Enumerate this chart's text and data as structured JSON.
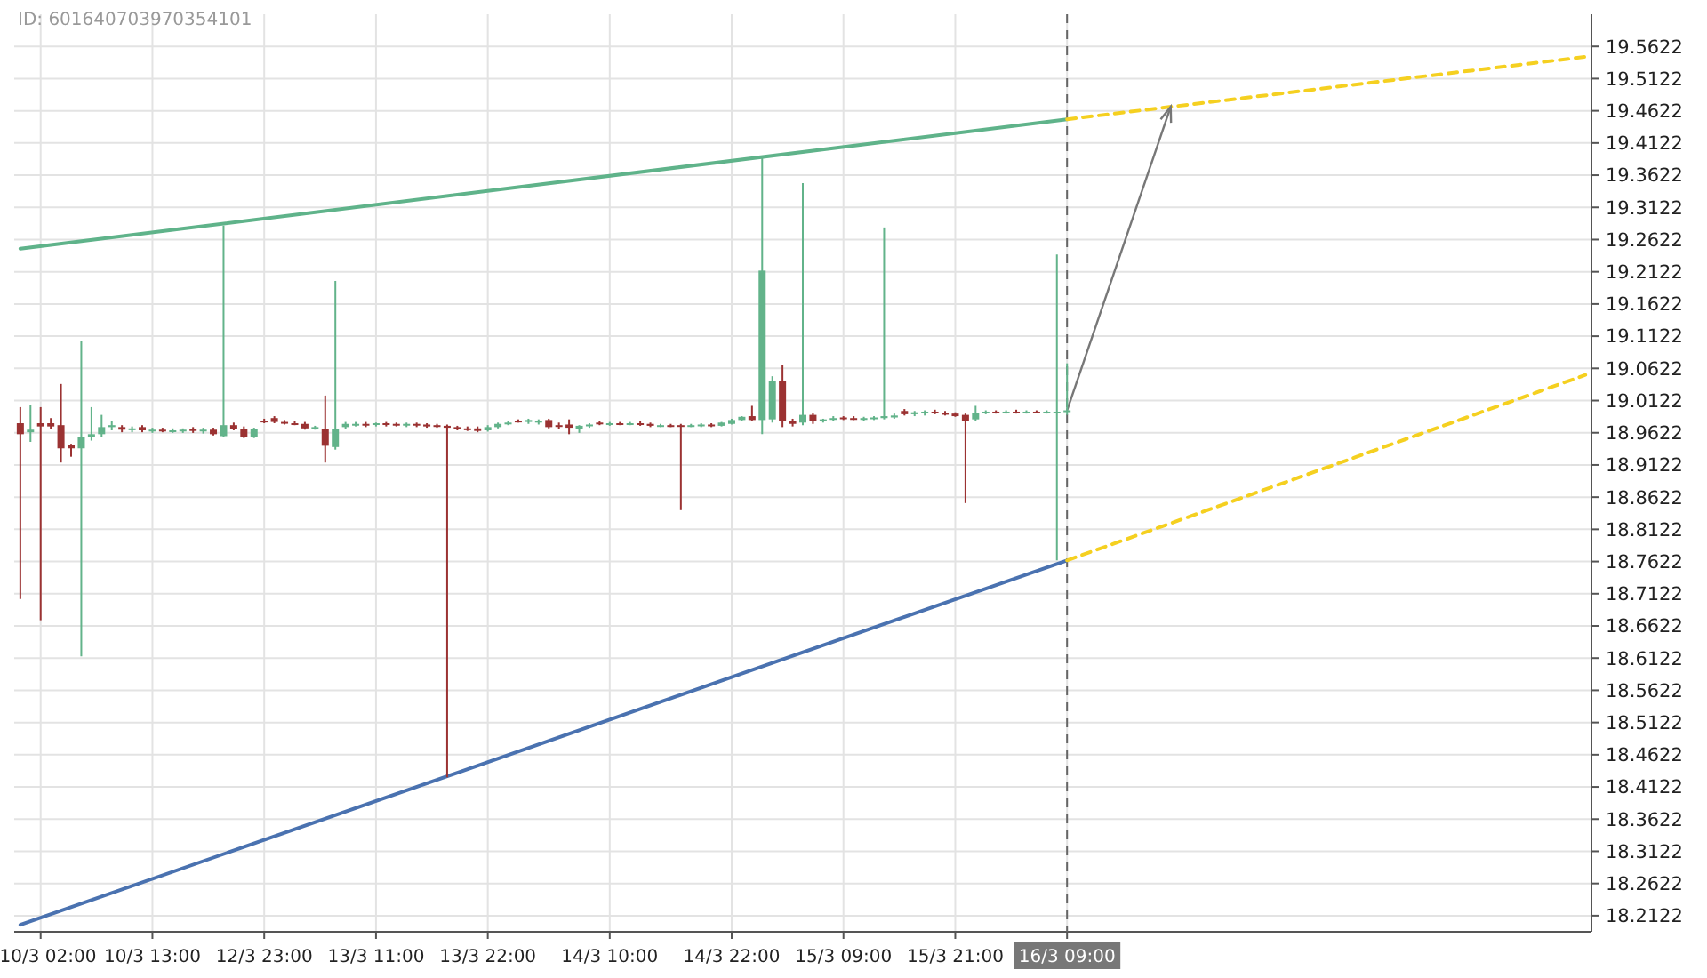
{
  "chart_data": {
    "type": "candlestick",
    "annotations": [
      "ID: 601640703970354101"
    ],
    "categories": [
      null,
      null,
      "10/3 02:00",
      null,
      null,
      null,
      null,
      null,
      null,
      null,
      null,
      null,
      null,
      "10/3 13:00",
      null,
      null,
      null,
      null,
      null,
      null,
      null,
      null,
      null,
      null,
      "12/3 23:00",
      null,
      null,
      null,
      null,
      null,
      null,
      null,
      null,
      null,
      null,
      "13/3 11:00",
      null,
      null,
      null,
      null,
      null,
      null,
      null,
      null,
      null,
      null,
      "13/3 22:00",
      null,
      null,
      null,
      null,
      null,
      null,
      null,
      null,
      null,
      null,
      null,
      "14/3 10:00",
      null,
      null,
      null,
      null,
      null,
      null,
      null,
      null,
      null,
      null,
      null,
      "14/3 22:00",
      null,
      null,
      null,
      null,
      null,
      null,
      null,
      null,
      null,
      null,
      "15/3 09:00",
      null,
      null,
      null,
      null,
      null,
      null,
      null,
      null,
      null,
      null,
      "15/3 21:00",
      null,
      null,
      null,
      null,
      null,
      null,
      null,
      null,
      null,
      null,
      "16/3 09:00",
      null,
      null,
      null,
      null,
      null,
      null,
      null,
      null,
      null,
      null,
      null,
      null,
      null,
      null,
      null,
      null,
      null,
      null,
      null,
      null,
      null,
      null,
      null,
      null,
      null,
      null,
      null,
      null,
      null,
      null,
      null,
      null,
      null,
      null,
      null,
      null,
      null,
      null,
      null,
      null,
      null,
      null,
      null,
      null,
      null,
      null,
      null,
      null,
      null,
      null,
      null
    ],
    "ohlc": [
      [
        18.977,
        19.002,
        18.704,
        18.96
      ],
      [
        18.963,
        19.005,
        18.948,
        18.967
      ],
      [
        18.977,
        19.002,
        18.671,
        18.972
      ],
      [
        18.977,
        18.985,
        18.968,
        18.972
      ],
      [
        18.974,
        19.038,
        18.916,
        18.938
      ],
      [
        18.943,
        18.945,
        18.925,
        18.938
      ],
      [
        18.938,
        19.104,
        18.615,
        18.955
      ],
      [
        18.955,
        19.002,
        18.95,
        18.96
      ],
      [
        18.96,
        18.99,
        18.955,
        18.971
      ],
      [
        18.971,
        18.98,
        18.966,
        18.974
      ],
      [
        18.971,
        18.974,
        18.963,
        18.967
      ],
      [
        18.967,
        18.972,
        18.963,
        18.969
      ],
      [
        18.971,
        18.974,
        18.963,
        18.966
      ],
      [
        18.966,
        18.97,
        18.962,
        18.967
      ],
      [
        18.967,
        18.97,
        18.963,
        18.965
      ],
      [
        18.965,
        18.969,
        18.962,
        18.966
      ],
      [
        18.966,
        18.969,
        18.962,
        18.967
      ],
      [
        18.968,
        18.971,
        18.962,
        18.965
      ],
      [
        18.965,
        18.97,
        18.961,
        18.967
      ],
      [
        18.967,
        18.97,
        18.958,
        18.96
      ],
      [
        18.957,
        19.284,
        18.955,
        18.974
      ],
      [
        18.974,
        18.978,
        18.966,
        18.968
      ],
      [
        18.968,
        18.972,
        18.954,
        18.956
      ],
      [
        18.956,
        18.97,
        18.954,
        18.968
      ],
      [
        18.981,
        18.984,
        18.977,
        18.979
      ],
      [
        18.985,
        18.988,
        18.977,
        18.979
      ],
      [
        18.979,
        18.982,
        18.975,
        18.977
      ],
      [
        18.977,
        18.98,
        18.974,
        18.976
      ],
      [
        18.976,
        18.979,
        18.967,
        18.969
      ],
      [
        18.969,
        18.973,
        18.967,
        18.971
      ],
      [
        18.968,
        19.02,
        18.916,
        18.942
      ],
      [
        18.94,
        19.198,
        18.936,
        18.968
      ],
      [
        18.971,
        18.979,
        18.968,
        18.976
      ],
      [
        18.975,
        18.979,
        18.972,
        18.976
      ],
      [
        18.976,
        18.979,
        18.971,
        18.975
      ],
      [
        18.975,
        18.978,
        18.972,
        18.977
      ],
      [
        18.977,
        18.979,
        18.972,
        18.975
      ],
      [
        18.976,
        18.978,
        18.972,
        18.974
      ],
      [
        18.975,
        18.978,
        18.971,
        18.976
      ],
      [
        18.976,
        18.978,
        18.971,
        18.974
      ],
      [
        18.975,
        18.977,
        18.97,
        18.972
      ],
      [
        18.974,
        18.976,
        18.97,
        18.972
      ],
      [
        18.973,
        18.975,
        18.427,
        18.97
      ],
      [
        18.971,
        18.973,
        18.966,
        18.969
      ],
      [
        18.969,
        18.972,
        18.965,
        18.968
      ],
      [
        18.969,
        18.972,
        18.963,
        18.965
      ],
      [
        18.966,
        18.974,
        18.964,
        18.971
      ],
      [
        18.971,
        18.978,
        18.969,
        18.976
      ],
      [
        18.976,
        18.981,
        18.974,
        18.978
      ],
      [
        18.981,
        18.983,
        18.978,
        18.979
      ],
      [
        18.979,
        18.984,
        18.976,
        18.982
      ],
      [
        18.978,
        18.983,
        18.975,
        18.981
      ],
      [
        18.982,
        18.984,
        18.969,
        18.971
      ],
      [
        18.974,
        18.978,
        18.968,
        18.972
      ],
      [
        18.975,
        18.983,
        18.96,
        18.97
      ],
      [
        18.968,
        18.974,
        18.962,
        18.973
      ],
      [
        18.973,
        18.977,
        18.97,
        18.975
      ],
      [
        18.978,
        18.98,
        18.974,
        18.976
      ],
      [
        18.976,
        18.979,
        18.973,
        18.977
      ],
      [
        18.977,
        18.979,
        18.974,
        18.976
      ],
      [
        18.976,
        18.979,
        18.974,
        18.977
      ],
      [
        18.977,
        18.98,
        18.973,
        18.975
      ],
      [
        18.976,
        18.978,
        18.971,
        18.973
      ],
      [
        18.973,
        18.976,
        18.971,
        18.974
      ],
      [
        18.974,
        18.976,
        18.971,
        18.973
      ],
      [
        18.974,
        18.976,
        18.842,
        18.973
      ],
      [
        18.973,
        18.976,
        18.971,
        18.974
      ],
      [
        18.974,
        18.977,
        18.971,
        18.975
      ],
      [
        18.975,
        18.977,
        18.971,
        18.973
      ],
      [
        18.973,
        18.979,
        18.972,
        18.978
      ],
      [
        18.976,
        18.984,
        18.975,
        18.982
      ],
      [
        18.982,
        18.988,
        18.98,
        18.987
      ],
      [
        18.988,
        19.004,
        18.98,
        18.982
      ],
      [
        18.982,
        19.391,
        18.96,
        19.214
      ],
      [
        18.983,
        19.05,
        18.978,
        19.043
      ],
      [
        19.043,
        19.068,
        18.971,
        18.981
      ],
      [
        18.981,
        18.984,
        18.972,
        18.976
      ],
      [
        18.978,
        19.35,
        18.974,
        18.99
      ],
      [
        18.99,
        18.993,
        18.976,
        18.981
      ],
      [
        18.981,
        18.984,
        18.978,
        18.983
      ],
      [
        18.983,
        18.988,
        18.981,
        18.985
      ],
      [
        18.986,
        18.988,
        18.982,
        18.984
      ],
      [
        18.985,
        18.988,
        18.982,
        18.984
      ],
      [
        18.984,
        18.987,
        18.981,
        18.985
      ],
      [
        18.985,
        18.988,
        18.982,
        18.986
      ],
      [
        18.985,
        19.281,
        18.983,
        18.988
      ],
      [
        18.986,
        18.992,
        18.984,
        18.989
      ],
      [
        18.996,
        18.999,
        18.989,
        18.991
      ],
      [
        18.991,
        18.996,
        18.988,
        18.994
      ],
      [
        18.993,
        18.997,
        18.989,
        18.995
      ],
      [
        18.995,
        18.998,
        18.991,
        18.993
      ],
      [
        18.993,
        18.996,
        18.989,
        18.991
      ],
      [
        18.992,
        18.994,
        18.987,
        18.988
      ],
      [
        18.99,
        18.992,
        18.853,
        18.981
      ],
      [
        18.983,
        19.004,
        18.98,
        18.993
      ],
      [
        18.993,
        18.997,
        18.991,
        18.995
      ],
      [
        18.995,
        18.997,
        18.992,
        18.994
      ],
      [
        18.994,
        18.997,
        18.992,
        18.995
      ],
      [
        18.995,
        18.998,
        18.992,
        18.994
      ],
      [
        18.994,
        18.997,
        18.992,
        18.995
      ],
      [
        18.995,
        18.997,
        18.993,
        18.994
      ],
      [
        18.994,
        18.997,
        18.992,
        18.995
      ],
      [
        18.993,
        19.239,
        18.764,
        18.995
      ],
      [
        18.995,
        19.07,
        18.99,
        18.997
      ],
      null,
      null,
      null,
      null,
      null,
      null,
      null,
      null,
      null,
      null,
      null,
      null,
      null,
      null,
      null,
      null,
      null,
      null,
      null,
      null,
      null,
      null,
      null,
      null,
      null,
      null,
      null,
      null,
      null,
      null,
      null,
      null,
      null,
      null,
      null,
      null,
      null,
      null,
      null,
      null,
      null,
      null,
      null,
      null,
      null,
      null,
      null,
      null,
      null,
      null,
      null
    ],
    "series": [
      {
        "type": "line",
        "color": "#5fb38a",
        "line_style": "solid",
        "values": [
          19.248,
          null,
          null,
          null,
          null,
          null,
          null,
          null,
          null,
          null,
          null,
          null,
          null,
          null,
          null,
          null,
          null,
          null,
          null,
          null,
          null,
          null,
          null,
          null,
          null,
          null,
          null,
          null,
          null,
          null,
          null,
          null,
          null,
          null,
          null,
          null,
          null,
          null,
          null,
          null,
          null,
          null,
          null,
          null,
          null,
          null,
          null,
          null,
          null,
          null,
          null,
          null,
          null,
          null,
          null,
          null,
          null,
          null,
          null,
          null,
          null,
          null,
          null,
          null,
          null,
          null,
          null,
          null,
          null,
          null,
          null,
          null,
          null,
          null,
          null,
          null,
          null,
          null,
          null,
          null,
          null,
          null,
          null,
          null,
          null,
          null,
          null,
          null,
          null,
          null,
          null,
          null,
          null,
          null,
          null,
          null,
          null,
          null,
          null,
          null,
          null,
          null,
          null,
          19.449,
          null,
          null,
          null,
          null,
          null,
          null,
          null,
          null,
          null,
          null,
          null,
          null,
          null,
          null,
          null,
          null,
          null,
          null,
          null,
          null,
          null,
          null,
          null,
          null,
          null,
          null,
          null,
          null,
          null,
          null,
          null,
          null,
          null,
          null,
          null,
          null,
          null,
          null,
          null,
          null,
          null,
          null,
          null,
          null,
          null,
          null,
          null,
          null,
          null,
          null,
          null
        ]
      },
      {
        "type": "line",
        "color": "#4a72b0",
        "line_style": "solid",
        "values": [
          18.198,
          null,
          null,
          null,
          null,
          null,
          null,
          null,
          null,
          null,
          null,
          null,
          null,
          null,
          null,
          null,
          null,
          null,
          null,
          null,
          null,
          null,
          null,
          null,
          null,
          null,
          null,
          null,
          null,
          null,
          null,
          null,
          null,
          null,
          null,
          null,
          null,
          null,
          null,
          null,
          null,
          null,
          null,
          null,
          null,
          null,
          null,
          null,
          null,
          null,
          null,
          null,
          null,
          null,
          null,
          null,
          null,
          null,
          null,
          null,
          null,
          null,
          null,
          null,
          null,
          null,
          null,
          null,
          null,
          null,
          null,
          null,
          null,
          null,
          null,
          null,
          null,
          null,
          null,
          null,
          null,
          null,
          null,
          null,
          null,
          null,
          null,
          null,
          null,
          null,
          null,
          null,
          null,
          null,
          null,
          null,
          null,
          null,
          null,
          null,
          null,
          null,
          null,
          18.764,
          null,
          null,
          null,
          null,
          null,
          null,
          null,
          null,
          null,
          null,
          null,
          null,
          null,
          null,
          null,
          null,
          null,
          null,
          null,
          null,
          null,
          null,
          null,
          null,
          null,
          null,
          null,
          null,
          null,
          null,
          null,
          null,
          null,
          null,
          null,
          null,
          null,
          null,
          null,
          null,
          null,
          null,
          null,
          null,
          null,
          null,
          null,
          null,
          null,
          null,
          null
        ]
      },
      {
        "type": "line",
        "color": "#f5d020",
        "line_style": "dashed",
        "values": [
          null,
          null,
          null,
          null,
          null,
          null,
          null,
          null,
          null,
          null,
          null,
          null,
          null,
          null,
          null,
          null,
          null,
          null,
          null,
          null,
          null,
          null,
          null,
          null,
          null,
          null,
          null,
          null,
          null,
          null,
          null,
          null,
          null,
          null,
          null,
          null,
          null,
          null,
          null,
          null,
          null,
          null,
          null,
          null,
          null,
          null,
          null,
          null,
          null,
          null,
          null,
          null,
          null,
          null,
          null,
          null,
          null,
          null,
          null,
          null,
          null,
          null,
          null,
          null,
          null,
          null,
          null,
          null,
          null,
          null,
          null,
          null,
          null,
          null,
          null,
          null,
          null,
          null,
          null,
          null,
          null,
          null,
          null,
          null,
          null,
          null,
          null,
          null,
          null,
          null,
          null,
          null,
          null,
          null,
          null,
          null,
          null,
          null,
          null,
          null,
          null,
          null,
          null,
          19.449,
          null,
          null,
          null,
          null,
          null,
          null,
          null,
          null,
          null,
          null,
          null,
          null,
          null,
          null,
          null,
          null,
          null,
          null,
          null,
          null,
          null,
          null,
          null,
          null,
          null,
          null,
          null,
          null,
          null,
          null,
          null,
          null,
          null,
          null,
          null,
          null,
          null,
          null,
          null,
          null,
          null,
          null,
          null,
          null,
          null,
          null,
          null,
          null,
          null,
          null,
          19.546
        ]
      },
      {
        "type": "line",
        "color": "#f5d020",
        "line_style": "dashed",
        "values": [
          null,
          null,
          null,
          null,
          null,
          null,
          null,
          null,
          null,
          null,
          null,
          null,
          null,
          null,
          null,
          null,
          null,
          null,
          null,
          null,
          null,
          null,
          null,
          null,
          null,
          null,
          null,
          null,
          null,
          null,
          null,
          null,
          null,
          null,
          null,
          null,
          null,
          null,
          null,
          null,
          null,
          null,
          null,
          null,
          null,
          null,
          null,
          null,
          null,
          null,
          null,
          null,
          null,
          null,
          null,
          null,
          null,
          null,
          null,
          null,
          null,
          null,
          null,
          null,
          null,
          null,
          null,
          null,
          null,
          null,
          null,
          null,
          null,
          null,
          null,
          null,
          null,
          null,
          null,
          null,
          null,
          null,
          null,
          null,
          null,
          null,
          null,
          null,
          null,
          null,
          null,
          null,
          null,
          null,
          null,
          null,
          null,
          null,
          null,
          null,
          null,
          null,
          null,
          18.764,
          null,
          null,
          null,
          null,
          null,
          null,
          null,
          null,
          null,
          null,
          null,
          null,
          null,
          null,
          null,
          null,
          null,
          null,
          null,
          null,
          null,
          null,
          null,
          null,
          null,
          null,
          null,
          null,
          null,
          null,
          null,
          null,
          null,
          null,
          null,
          null,
          null,
          null,
          null,
          null,
          null,
          null,
          null,
          null,
          null,
          null,
          null,
          null,
          null,
          null,
          19.052
        ]
      }
    ],
    "ref_lines": [
      {
        "axis": "x",
        "value": "16/3 09:00",
        "color": "#666666",
        "line_style": "dashed"
      }
    ],
    "ylim": [
      18.1872,
      19.6122
    ],
    "yticks": [
      18.2122,
      18.2622,
      18.3122,
      18.3622,
      18.4122,
      18.4622,
      18.5122,
      18.5622,
      18.6122,
      18.6622,
      18.7122,
      18.7622,
      18.8122,
      18.8622,
      18.9122,
      18.9622,
      19.0122,
      19.0622,
      19.1122,
      19.1622,
      19.2122,
      19.2622,
      19.3122,
      19.3622,
      19.4122,
      19.4622,
      19.5122,
      19.5622
    ],
    "grid": true
  }
}
